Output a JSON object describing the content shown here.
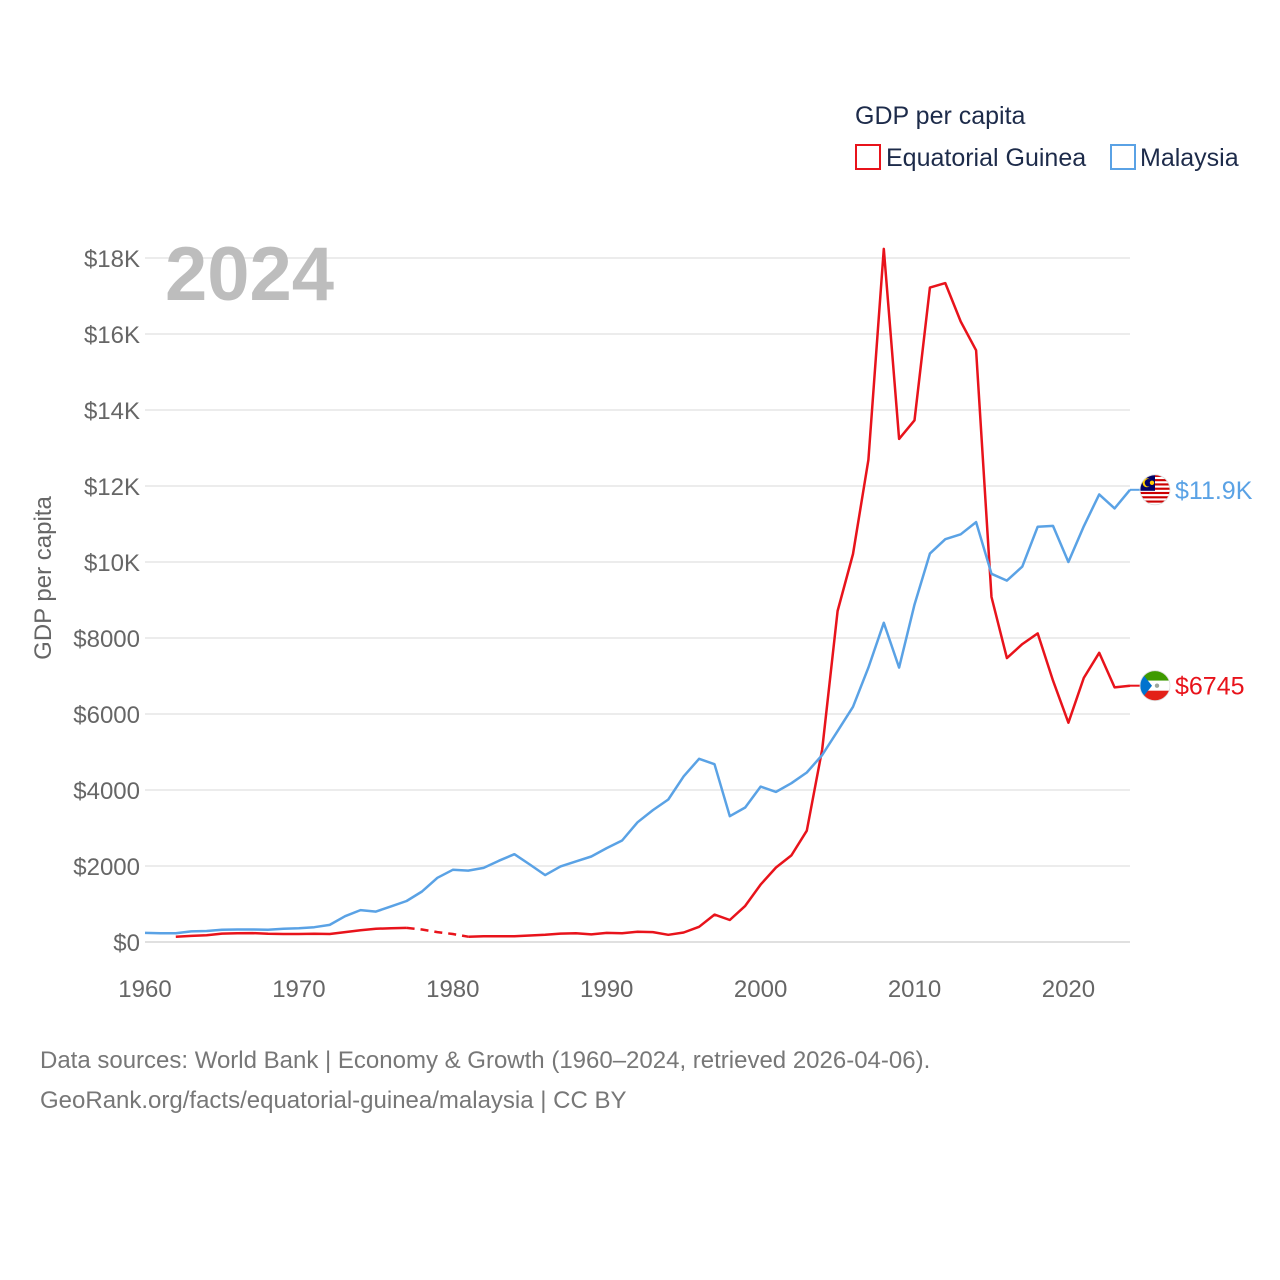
{
  "chart_data": {
    "type": "line",
    "title": "GDP per capita",
    "year_watermark": "2024",
    "ylabel": "GDP per capita",
    "xlabel": "",
    "xlim": [
      1960,
      2024
    ],
    "ylim": [
      0,
      18000
    ],
    "x_ticks": [
      1960,
      1970,
      1980,
      1990,
      2000,
      2010,
      2020
    ],
    "x_tick_labels": [
      "1960",
      "1970",
      "1980",
      "1990",
      "2000",
      "2010",
      "2020"
    ],
    "y_ticks": [
      0,
      2000,
      4000,
      6000,
      8000,
      10000,
      12000,
      14000,
      16000,
      18000
    ],
    "y_tick_labels": [
      "$0",
      "$2000",
      "$4000",
      "$6000",
      "$8000",
      "$10K",
      "$12K",
      "$14K",
      "$16K",
      "$18K"
    ],
    "grid": true,
    "legend_position": "top-right",
    "series": [
      {
        "name": "Equatorial Guinea",
        "color": "#e8131b",
        "flag_icon": "equatorial-guinea-flag-icon",
        "end_label": "$6745",
        "end_value": 6745,
        "dashed_gap": [
          1977,
          1981
        ],
        "points": [
          [
            1962,
            140
          ],
          [
            1963,
            160
          ],
          [
            1964,
            180
          ],
          [
            1965,
            220
          ],
          [
            1966,
            230
          ],
          [
            1967,
            235
          ],
          [
            1968,
            215
          ],
          [
            1969,
            210
          ],
          [
            1970,
            210
          ],
          [
            1971,
            215
          ],
          [
            1972,
            210
          ],
          [
            1973,
            260
          ],
          [
            1974,
            310
          ],
          [
            1975,
            350
          ],
          [
            1976,
            360
          ],
          [
            1977,
            370
          ],
          [
            1978,
            330
          ],
          [
            1979,
            260
          ],
          [
            1980,
            210
          ],
          [
            1981,
            140
          ],
          [
            1982,
            150
          ],
          [
            1983,
            150
          ],
          [
            1984,
            150
          ],
          [
            1985,
            170
          ],
          [
            1986,
            190
          ],
          [
            1987,
            220
          ],
          [
            1988,
            230
          ],
          [
            1989,
            200
          ],
          [
            1990,
            240
          ],
          [
            1991,
            230
          ],
          [
            1992,
            270
          ],
          [
            1993,
            260
          ],
          [
            1994,
            190
          ],
          [
            1995,
            250
          ],
          [
            1996,
            400
          ],
          [
            1997,
            720
          ],
          [
            1998,
            580
          ],
          [
            1999,
            950
          ],
          [
            2000,
            1510
          ],
          [
            2001,
            1960
          ],
          [
            2002,
            2280
          ],
          [
            2003,
            2930
          ],
          [
            2004,
            5070
          ],
          [
            2005,
            8710
          ],
          [
            2006,
            10210
          ],
          [
            2007,
            12690
          ],
          [
            2008,
            18240
          ],
          [
            2009,
            13240
          ],
          [
            2010,
            13730
          ],
          [
            2011,
            17220
          ],
          [
            2012,
            17340
          ],
          [
            2013,
            16330
          ],
          [
            2014,
            15570
          ],
          [
            2015,
            9080
          ],
          [
            2016,
            7470
          ],
          [
            2017,
            7840
          ],
          [
            2018,
            8120
          ],
          [
            2019,
            6880
          ],
          [
            2020,
            5770
          ],
          [
            2021,
            6950
          ],
          [
            2022,
            7610
          ],
          [
            2023,
            6700
          ],
          [
            2024,
            6745
          ]
        ]
      },
      {
        "name": "Malaysia",
        "color": "#5aa2e5",
        "flag_icon": "malaysia-flag-icon",
        "end_label": "$11.9K",
        "end_value": 11900,
        "points": [
          [
            1960,
            240
          ],
          [
            1961,
            230
          ],
          [
            1962,
            230
          ],
          [
            1963,
            280
          ],
          [
            1964,
            290
          ],
          [
            1965,
            320
          ],
          [
            1966,
            330
          ],
          [
            1967,
            330
          ],
          [
            1968,
            320
          ],
          [
            1969,
            350
          ],
          [
            1970,
            360
          ],
          [
            1971,
            390
          ],
          [
            1972,
            450
          ],
          [
            1973,
            680
          ],
          [
            1974,
            840
          ],
          [
            1975,
            800
          ],
          [
            1976,
            940
          ],
          [
            1977,
            1080
          ],
          [
            1978,
            1330
          ],
          [
            1979,
            1690
          ],
          [
            1980,
            1900
          ],
          [
            1981,
            1880
          ],
          [
            1982,
            1950
          ],
          [
            1983,
            2140
          ],
          [
            1984,
            2310
          ],
          [
            1985,
            2040
          ],
          [
            1986,
            1760
          ],
          [
            1987,
            1990
          ],
          [
            1988,
            2120
          ],
          [
            1989,
            2250
          ],
          [
            1990,
            2470
          ],
          [
            1991,
            2670
          ],
          [
            1992,
            3150
          ],
          [
            1993,
            3470
          ],
          [
            1994,
            3750
          ],
          [
            1995,
            4360
          ],
          [
            1996,
            4820
          ],
          [
            1997,
            4680
          ],
          [
            1998,
            3310
          ],
          [
            1999,
            3540
          ],
          [
            2000,
            4090
          ],
          [
            2001,
            3950
          ],
          [
            2002,
            4180
          ],
          [
            2003,
            4460
          ],
          [
            2004,
            4920
          ],
          [
            2005,
            5550
          ],
          [
            2006,
            6190
          ],
          [
            2007,
            7220
          ],
          [
            2008,
            8400
          ],
          [
            2009,
            7220
          ],
          [
            2010,
            8880
          ],
          [
            2011,
            10220
          ],
          [
            2012,
            10600
          ],
          [
            2013,
            10730
          ],
          [
            2014,
            11050
          ],
          [
            2015,
            9690
          ],
          [
            2016,
            9510
          ],
          [
            2017,
            9880
          ],
          [
            2018,
            10930
          ],
          [
            2019,
            10950
          ],
          [
            2020,
            10000
          ],
          [
            2021,
            10940
          ],
          [
            2022,
            11780
          ],
          [
            2023,
            11410
          ],
          [
            2024,
            11900
          ]
        ]
      }
    ]
  },
  "footer": {
    "source_line": "Data sources: World Bank | Economy & Growth (1960–2024, retrieved 2026-04-06).",
    "url_line": "GeoRank.org/facts/equatorial-guinea/malaysia | CC BY"
  }
}
